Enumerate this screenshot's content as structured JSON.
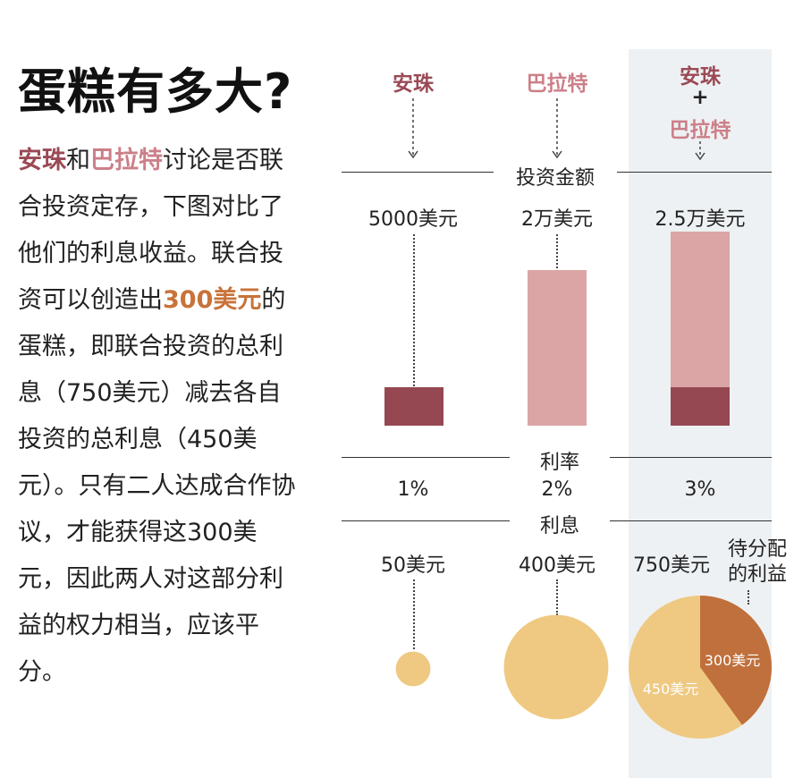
{
  "title": "蛋糕有多大?",
  "body": [
    {
      "text": "安珠",
      "style": "a"
    },
    {
      "text": "和",
      "style": ""
    },
    {
      "text": "巴拉特",
      "style": "b"
    },
    {
      "text": "讨论是否联合投资定存，下图对比了他们的利息收益。联合投资可以创造出",
      "style": ""
    },
    {
      "text": "300美元",
      "style": "c"
    },
    {
      "text": "的蛋糕，即联合投资的总利息（750美元）减去各自投资的总利息（450美元）。只有二人达成合作协议，才能获得这300美元，因此两人对这部分利益的权力相当，应该平分。",
      "style": ""
    }
  ],
  "colors": {
    "anzhu": "#9a4a55",
    "balate": "#cc7f88",
    "bar_light": "#dba5a5",
    "bar_dark": "#954852",
    "coin": "#efc982",
    "split": "#c0703c",
    "shade": "#eef1f3"
  },
  "columns": [
    {
      "name": "安珠",
      "amount": "5000美元",
      "rate": "1%",
      "interest": "50美元"
    },
    {
      "name": "巴拉特",
      "amount": "2万美元",
      "rate": "2%",
      "interest": "400美元"
    },
    {
      "name_top": "安珠",
      "plus": "+",
      "name_bottom": "巴拉特",
      "amount": "2.5万美元",
      "rate": "3%",
      "interest": "750美元"
    }
  ],
  "row_labels": {
    "amount": "投资金额",
    "rate": "利率",
    "interest": "利息"
  },
  "pie": {
    "callout": [
      "待分配",
      "的利益"
    ],
    "slice_split": "300美元",
    "slice_individual": "450美元"
  },
  "chart_data": {
    "type": "bar",
    "categories": [
      "安珠",
      "巴拉特",
      "安珠+巴拉特"
    ],
    "series": [
      {
        "values": [
          5000,
          20000,
          25000
        ]
      }
    ],
    "stack_detail": {
      "安珠+巴拉特": [
        5000,
        20000
      ]
    },
    "rates_percent": [
      1,
      2,
      3
    ],
    "interest": [
      50,
      400,
      750
    ],
    "interest_split": {
      "individual_total": 450,
      "to_be_divided": 300
    }
  }
}
